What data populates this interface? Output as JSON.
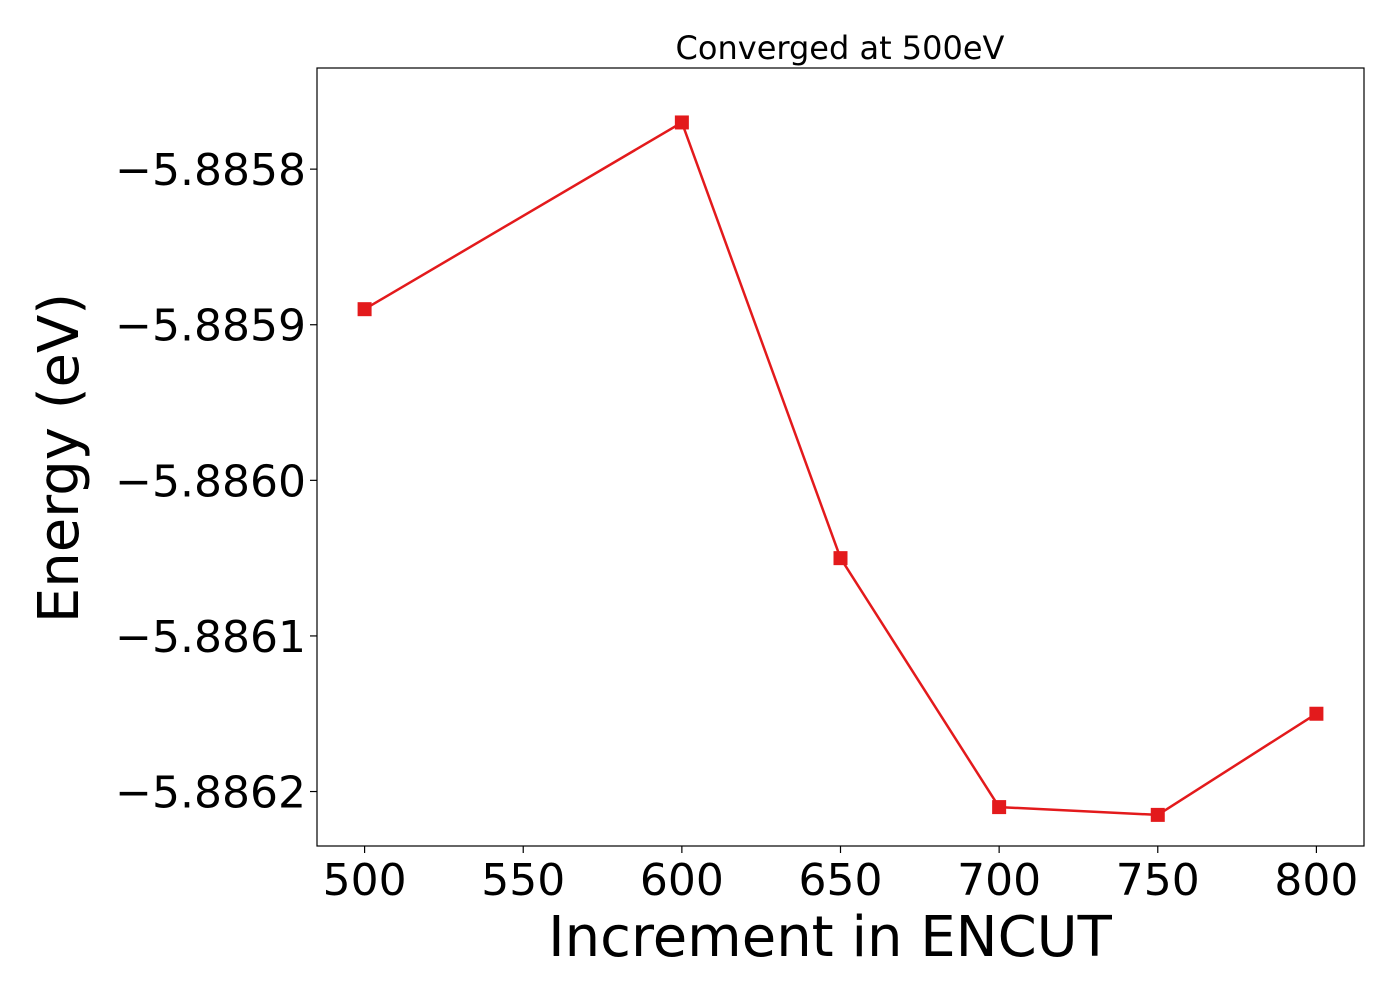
{
  "chart_data": {
    "type": "line",
    "title": "Converged at 500eV",
    "xlabel": "Increment in ENCUT",
    "ylabel": "Energy (eV)",
    "x": [
      500,
      600,
      650,
      700,
      750,
      800
    ],
    "series": [
      {
        "values": [
          -5.88589,
          -5.88577,
          -5.88605,
          -5.88621,
          -5.886215,
          -5.88615
        ],
        "color": "#e31a1c",
        "marker": "square"
      }
    ],
    "xticks": [
      500,
      550,
      600,
      650,
      700,
      750,
      800
    ],
    "xtick_labels": [
      "500",
      "550",
      "600",
      "650",
      "700",
      "750",
      "800"
    ],
    "yticks": [
      -5.8858,
      -5.8859,
      -5.886,
      -5.8861,
      -5.8862
    ],
    "ytick_labels": [
      "−5.8858",
      "−5.8859",
      "−5.8860",
      "−5.8861",
      "−5.8862"
    ],
    "xlim": [
      485,
      815
    ],
    "ylim": [
      -5.886235,
      -5.885735
    ],
    "grid": false,
    "legend": false
  }
}
